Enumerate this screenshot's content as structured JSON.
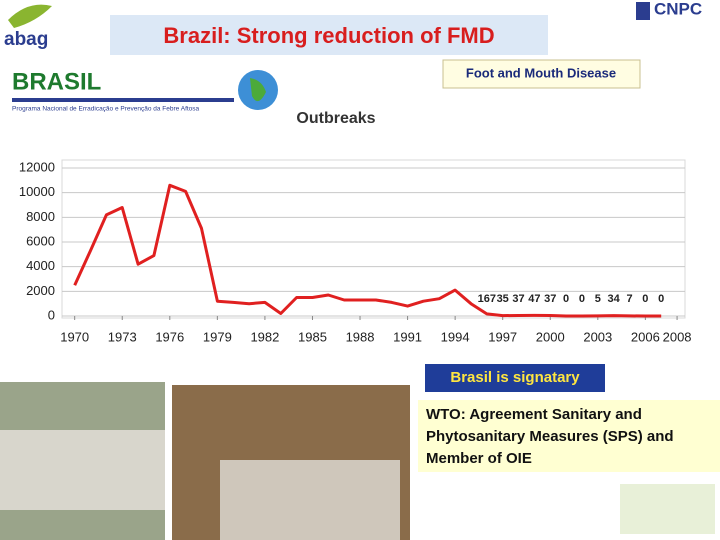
{
  "slide": {
    "title": "Brazil: Strong reduction of FMD",
    "logo": "abag",
    "right_logo": "CNPC",
    "brand": "BRASIL",
    "brand_subtitle": "Programa Nacional de Erradicação e Prevenção da Febre Aftosa",
    "disease": "Foot and Mouth Disease",
    "signatary": "Brasil is signatary",
    "agreement": "WTO: Agreement Sanitary and Phytosanitary Measures (SPS) and Member of OIE"
  },
  "chart_data": {
    "type": "line",
    "title": "Outbreaks",
    "color": "#e02020",
    "grid": true,
    "x": [
      1970,
      1971,
      1972,
      1973,
      1974,
      1975,
      1976,
      1977,
      1978,
      1979,
      1980,
      1981,
      1982,
      1983,
      1984,
      1985,
      1986,
      1987,
      1988,
      1989,
      1990,
      1991,
      1992,
      1993,
      1994,
      1995,
      1996,
      1997,
      1998,
      1999,
      2000,
      2001,
      2002,
      2003,
      2004,
      2005,
      2006,
      2007
    ],
    "values": [
      2500,
      5300,
      8200,
      8800,
      4200,
      4900,
      10600,
      10100,
      7100,
      1200,
      1100,
      1000,
      1100,
      200,
      1500,
      1500,
      1700,
      1300,
      1300,
      1300,
      1100,
      800,
      1200,
      1400,
      2100,
      1000,
      167,
      35,
      37,
      47,
      37,
      0,
      0,
      5,
      34,
      7,
      0,
      0
    ],
    "value_labels": [
      null,
      null,
      null,
      null,
      null,
      null,
      null,
      null,
      null,
      null,
      null,
      null,
      null,
      null,
      null,
      null,
      null,
      null,
      null,
      null,
      null,
      null,
      null,
      null,
      null,
      null,
      "167",
      "35",
      "37",
      "47",
      "37",
      "0",
      "0",
      "5",
      "34",
      "7",
      "0",
      "0"
    ],
    "xlim": [
      1969.2,
      2008.5
    ],
    "xticks": [
      1970,
      1973,
      1976,
      1979,
      1982,
      1985,
      1988,
      1991,
      1994,
      1997,
      2000,
      2003,
      2006,
      2008
    ],
    "ylim": [
      0,
      12000
    ],
    "yticks": [
      0,
      2000,
      4000,
      6000,
      8000,
      10000,
      12000
    ]
  }
}
